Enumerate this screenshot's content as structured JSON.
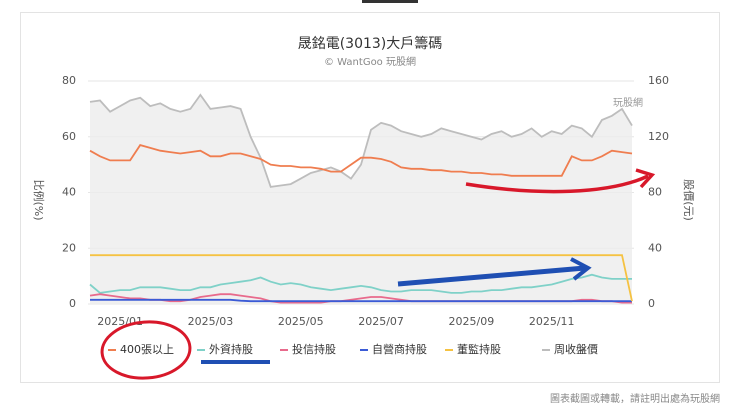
{
  "chart_data": {
    "type": "line",
    "title": "晟銘電(3013)大戶籌碼",
    "subtitle": "© WantGoo 玩股網",
    "watermark": "玩股網",
    "y_label": "比例(%)",
    "y2_label": "股價(元)",
    "footer": "圖表截圖或轉載，請註明出處為玩股網",
    "categories": [
      null,
      null,
      null,
      "2025/01",
      null,
      null,
      null,
      null,
      null,
      null,
      null,
      null,
      "2025/03",
      null,
      null,
      null,
      null,
      null,
      null,
      null,
      null,
      "2025/05",
      null,
      null,
      null,
      null,
      null,
      null,
      null,
      "2025/07",
      null,
      null,
      null,
      null,
      null,
      null,
      null,
      null,
      "2025/09",
      null,
      null,
      null,
      null,
      null,
      null,
      null,
      "2025/11",
      null,
      null,
      null,
      null,
      null,
      null,
      null,
      null
    ],
    "ylim": [
      0,
      80
    ],
    "yticks": [
      0,
      20,
      40,
      60,
      80
    ],
    "y2lim": [
      0,
      160
    ],
    "y2ticks": [
      0,
      40,
      80,
      120,
      160
    ],
    "grid": true,
    "series": [
      {
        "name": "400張以上",
        "color": "#ef7d4f",
        "values": [
          55,
          53,
          51.5,
          51.5,
          51.5,
          57,
          56,
          55,
          54.5,
          54,
          54.5,
          55,
          53,
          53,
          54,
          54,
          53,
          52,
          50,
          49.5,
          49.5,
          49,
          49,
          48.5,
          47.5,
          47.5,
          50,
          52.5,
          52.5,
          52,
          51,
          49,
          48.5,
          48.5,
          48,
          48,
          47.5,
          47.5,
          47,
          47,
          46.5,
          46.5,
          46,
          46,
          46,
          46,
          46,
          46,
          53,
          51.5,
          51.5,
          53,
          55,
          54.5,
          54
        ]
      },
      {
        "name": "外資持股",
        "color": "#7fd1c8",
        "values": [
          7,
          4,
          4.5,
          5,
          5,
          6,
          6,
          6,
          5.5,
          5,
          5,
          6,
          6,
          7,
          7.5,
          8,
          8.5,
          9.5,
          8,
          7,
          7.5,
          7,
          6,
          5.5,
          5,
          5.5,
          6,
          6.5,
          6,
          5,
          4.5,
          4.5,
          5,
          5,
          5,
          4.5,
          4,
          4,
          4.5,
          4.5,
          5,
          5,
          5.5,
          6,
          6,
          6.5,
          7,
          8,
          9,
          9.5,
          10.5,
          9.5,
          9,
          9,
          9
        ]
      },
      {
        "name": "投信持股",
        "color": "#e86a8c",
        "values": [
          3,
          3.5,
          3,
          2.5,
          2,
          2,
          1.5,
          1.5,
          1,
          1,
          1.5,
          2.5,
          3,
          3.5,
          3.5,
          3,
          2.5,
          2,
          1,
          0.5,
          0.5,
          0.5,
          0.5,
          0.5,
          1,
          1,
          1.5,
          2,
          2.5,
          2.5,
          2,
          1.5,
          1,
          1,
          1,
          1,
          1,
          1,
          1,
          1,
          1,
          1,
          1,
          1,
          1,
          1,
          1,
          1,
          1,
          1.5,
          1.5,
          1,
          1,
          0.5,
          0.5
        ]
      },
      {
        "name": "自營商持股",
        "color": "#3b5bd6",
        "values": [
          1.5,
          1.5,
          1.5,
          1.5,
          1.5,
          1.5,
          1.5,
          1.5,
          1.5,
          1.5,
          1.5,
          1.5,
          1.5,
          1.5,
          1.5,
          1.2,
          1,
          1,
          1,
          1,
          1,
          1,
          1,
          1,
          1,
          1,
          1,
          1,
          1,
          1,
          1,
          1,
          1,
          1,
          1,
          1,
          1,
          1,
          1,
          1,
          1,
          1,
          1,
          1,
          1,
          1,
          1,
          1,
          1,
          1,
          1,
          1,
          1,
          1,
          1
        ]
      },
      {
        "name": "董監持股",
        "color": "#f5c242",
        "values": [
          17.5,
          17.5,
          17.5,
          17.5,
          17.5,
          17.5,
          17.5,
          17.5,
          17.5,
          17.5,
          17.5,
          17.5,
          17.5,
          17.5,
          17.5,
          17.5,
          17.5,
          17.5,
          17.5,
          17.5,
          17.5,
          17.5,
          17.5,
          17.5,
          17.5,
          17.5,
          17.5,
          17.5,
          17.5,
          17.5,
          17.5,
          17.5,
          17.5,
          17.5,
          17.5,
          17.5,
          17.5,
          17.5,
          17.5,
          17.5,
          17.5,
          17.5,
          17.5,
          17.5,
          17.5,
          17.5,
          17.5,
          17.5,
          17.5,
          17.5,
          17.5,
          17.5,
          17.5,
          17.5,
          1
        ]
      },
      {
        "name": "周收盤價",
        "color": "#bdbdbd",
        "axis": "y2",
        "values": [
          145,
          146,
          138,
          142,
          146,
          148,
          142,
          144,
          140,
          138,
          140,
          150,
          140,
          141,
          142,
          140,
          120,
          105,
          84,
          85,
          86,
          90,
          94,
          96,
          98,
          95,
          90,
          100,
          125,
          130,
          128,
          124,
          122,
          120,
          122,
          126,
          124,
          122,
          120,
          118,
          122,
          124,
          120,
          122,
          126,
          120,
          124,
          122,
          128,
          126,
          120,
          132,
          135,
          140,
          128
        ]
      }
    ]
  }
}
